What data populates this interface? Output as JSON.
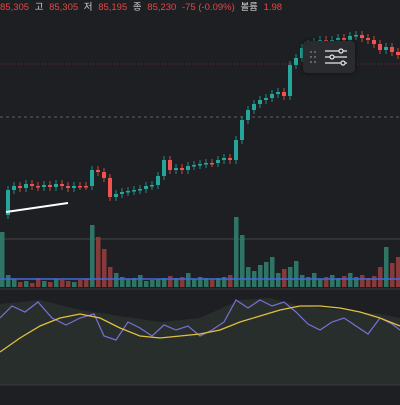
{
  "ohlc": {
    "partial_label": "",
    "partial_value": "85,305",
    "high_label": "고",
    "high_value": "85,305",
    "low_label": "저",
    "low_value": "85,195",
    "close_label": "종",
    "close_value": "85,230",
    "change_value": "-75 (-0.09%)",
    "volume_label": "볼륨",
    "volume_value": "1.98"
  },
  "icons": {
    "drag_handle": "drag-handle-icon",
    "settings": "sliders-icon"
  },
  "colors": {
    "background": "#1e1f22",
    "up_candle": "#26a69a",
    "down_candle": "#ef5350",
    "up_volume": "#2f7a6b",
    "down_volume": "#8e3b3b",
    "volume_ma": "#4169e1",
    "trend_line": "#ffffff",
    "indicator_line": "#7a6fd6",
    "indicator_signal": "#e0c040",
    "indicator_fill": "#3b4a3c"
  }
}
